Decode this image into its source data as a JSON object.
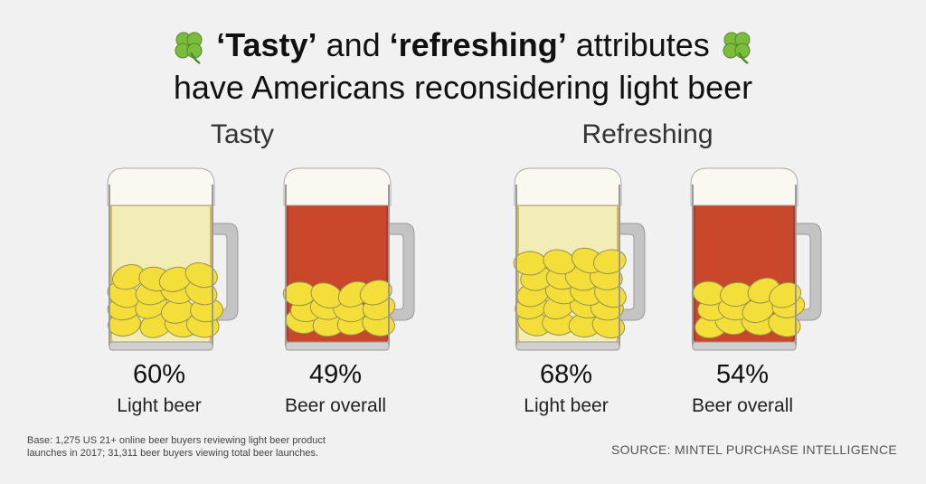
{
  "title": {
    "line1_part1": "‘Tasty’",
    "line1_part2": " and ",
    "line1_part3": "‘refreshing’",
    "line1_part4": " attributes",
    "line2": "have Americans reconsidering light beer"
  },
  "icons": {
    "left": "shamrock-icon",
    "right": "shamrock-icon"
  },
  "chart_data": {
    "type": "bar",
    "title": "‘Tasty’ and ‘refreshing’ attributes have Americans reconsidering light beer",
    "groups": [
      "Tasty",
      "Refreshing"
    ],
    "categories": [
      "Light beer",
      "Beer overall"
    ],
    "series": [
      {
        "name": "Tasty",
        "values": [
          60,
          49
        ],
        "labels": [
          "60%",
          "49%"
        ]
      },
      {
        "name": "Refreshing",
        "values": [
          68,
          54
        ],
        "labels": [
          "68%",
          "54%"
        ]
      }
    ],
    "ylim": [
      0,
      100
    ],
    "colors": {
      "light_beer": "#f2ecb6",
      "beer_overall": "#c9472b",
      "coin": "#f4df3a"
    }
  },
  "footnote": {
    "line1": "Base: 1,275 US 21+ online beer buyers reviewing light beer product",
    "line2": "launches in 2017; 31,311 beer buyers viewing total beer launches."
  },
  "source": "SOURCE: MINTEL PURCHASE INTELLIGENCE"
}
